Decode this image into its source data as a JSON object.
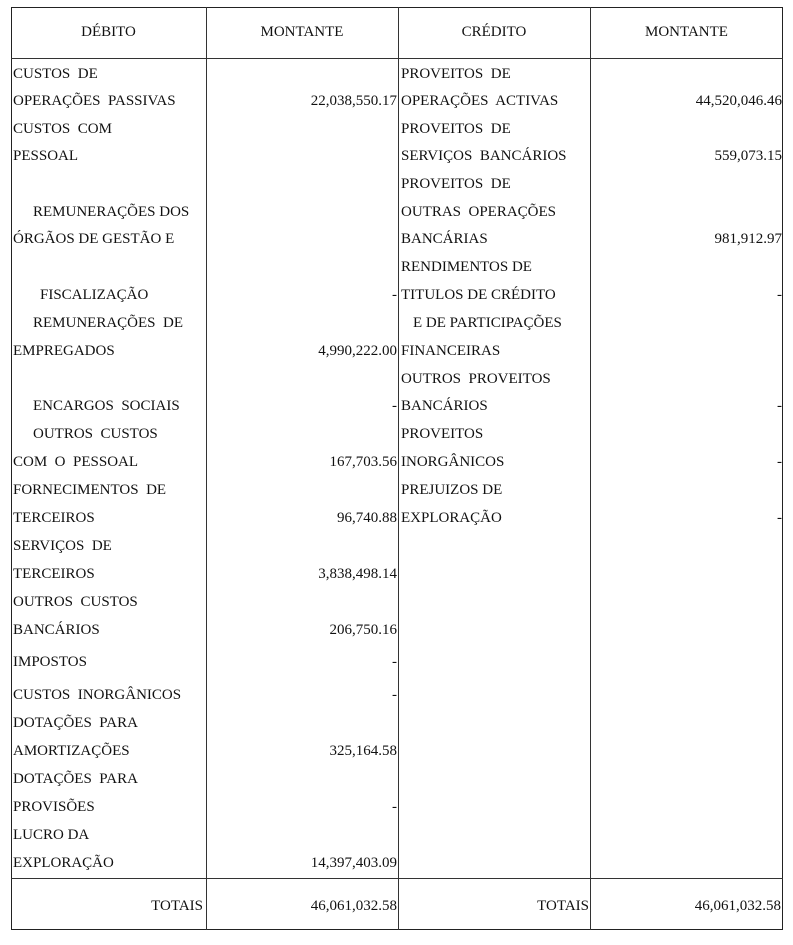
{
  "header": {
    "debit": "DÉBITO",
    "debit_amount": "MONTANTE",
    "credit": "CRÉDITO",
    "credit_amount": "MONTANTE"
  },
  "debit": {
    "lines": [
      "CUSTOS  DE",
      "OPERAÇÕES  PASSIVAS",
      "CUSTOS  COM",
      "PESSOAL",
      "",
      "REMUNERAÇÕES DOS",
      "ÓRGÃOS DE GESTÃO E",
      "",
      "FISCALIZAÇÃO",
      "REMUNERAÇÕES  DE",
      "EMPREGADOS",
      "",
      "ENCARGOS  SOCIAIS",
      "OUTROS  CUSTOS",
      "COM  O  PESSOAL",
      "FORNECIMENTOS  DE",
      "TERCEIROS",
      "SERVIÇOS  DE",
      "TERCEIROS",
      "OUTROS  CUSTOS",
      "BANCÁRIOS",
      "IMPOSTOS",
      "CUSTOS  INORGÂNICOS",
      "DOTAÇÕES  PARA",
      "AMORTIZAÇÕES",
      "DOTAÇÕES  PARA",
      "PROVISÕES",
      "LUCRO DA",
      "EXPLORAÇÃO"
    ],
    "amounts": [
      "",
      "22,038,550.17",
      "",
      "",
      "",
      "",
      "",
      "",
      "-",
      "",
      "4,990,222.00",
      "",
      "-",
      "",
      "167,703.56",
      "",
      "96,740.88",
      "",
      "3,838,498.14",
      "",
      "206,750.16",
      "-",
      "-",
      "",
      "325,164.58",
      "",
      "-",
      "",
      "14,397,403.09"
    ]
  },
  "credit": {
    "lines": [
      "PROVEITOS  DE",
      "OPERAÇÕES  ACTIVAS",
      "PROVEITOS  DE",
      "SERVIÇOS  BANCÁRIOS",
      "PROVEITOS  DE",
      "OUTRAS  OPERAÇÕES",
      "BANCÁRIAS",
      "RENDIMENTOS DE",
      "TITULOS DE CRÉDITO",
      "E DE PARTICIPAÇÕES",
      "FINANCEIRAS",
      "OUTROS  PROVEITOS",
      "BANCÁRIOS",
      "PROVEITOS",
      "INORGÂNICOS",
      "PREJUIZOS DE",
      "EXPLORAÇÃO"
    ],
    "amounts": [
      "",
      "44,520,046.46",
      "",
      "559,073.15",
      "",
      "",
      "981,912.97",
      "",
      "-",
      "",
      "",
      "",
      "-",
      "",
      "-",
      "",
      "-"
    ]
  },
  "totals": {
    "debit_label": "TOTAIS",
    "debit_total": "46,061,032.58",
    "credit_label": "TOTAIS",
    "credit_total": "46,061,032.58"
  }
}
